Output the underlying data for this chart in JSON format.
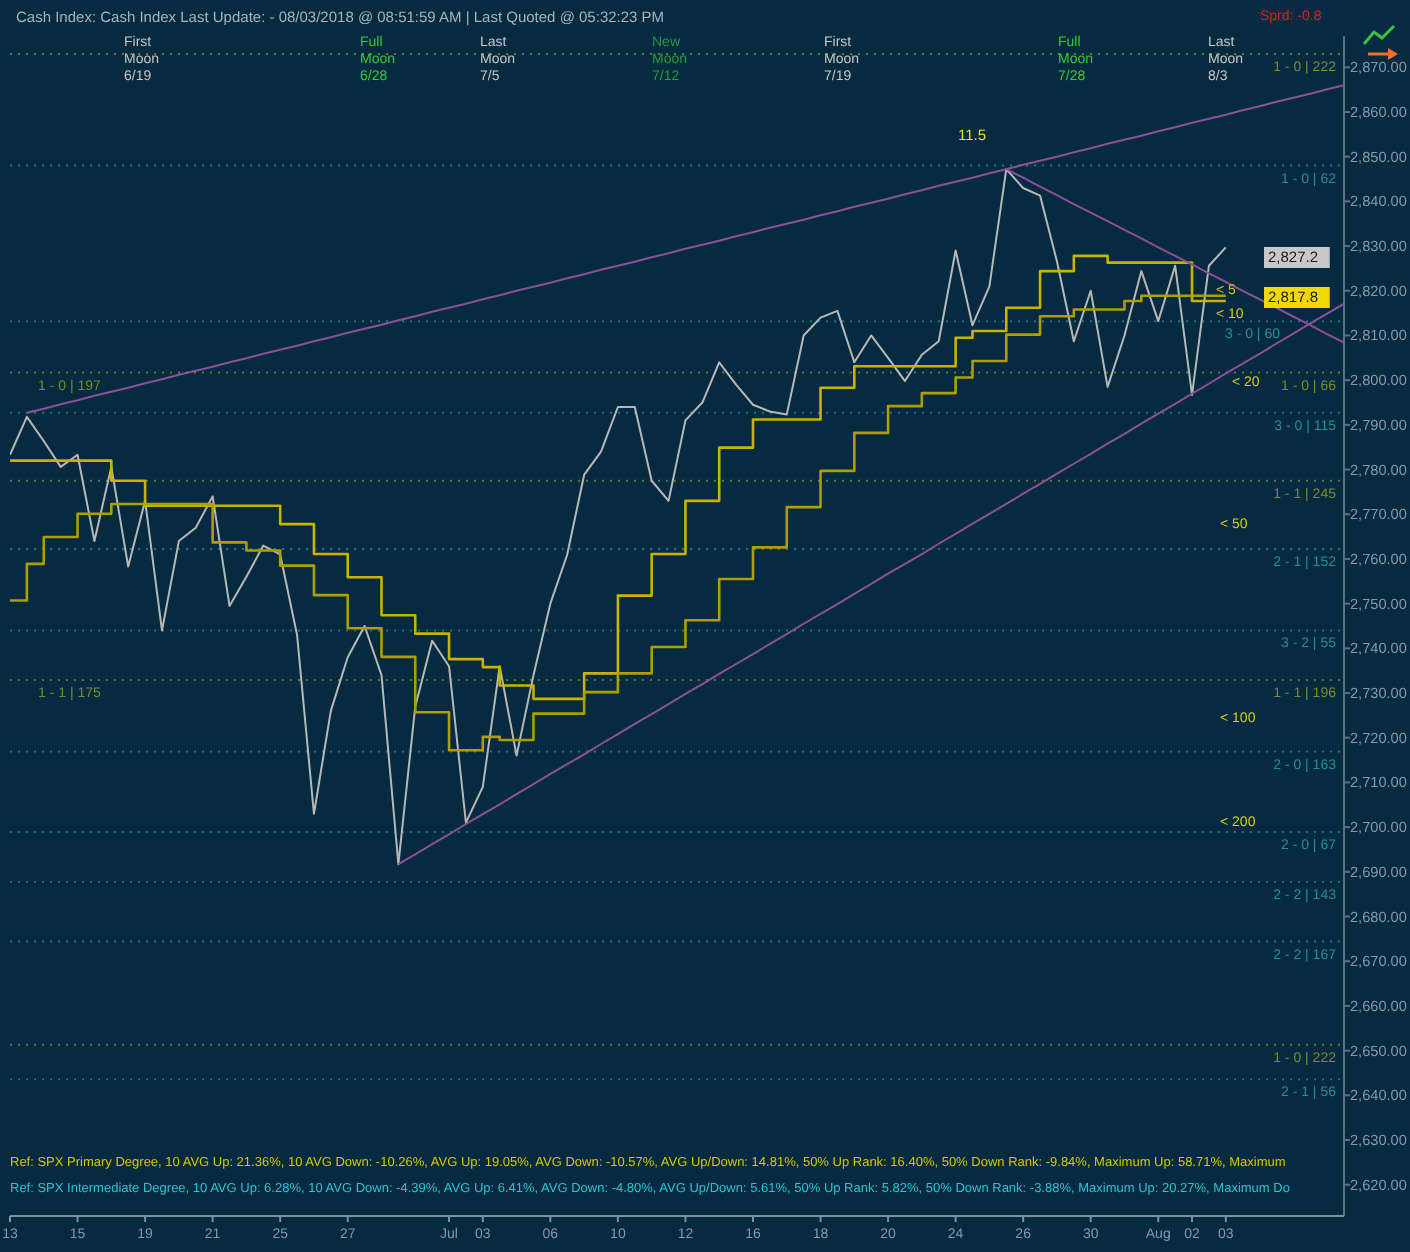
{
  "chart_data": {
    "type": "line",
    "title": "Cash Index:  Cash Index  Last Update:  - 08/03/2018 @ 08:51:59 AM | Last Quoted @ 05:32:23 PM",
    "categories": [
      "13",
      null,
      null,
      null,
      "15",
      null,
      null,
      null,
      "19",
      null,
      null,
      null,
      "21",
      null,
      null,
      null,
      "25",
      null,
      null,
      null,
      "27",
      null,
      null,
      null,
      null,
      null,
      "Jul",
      null,
      "03",
      null,
      null,
      null,
      "06",
      null,
      null,
      null,
      "10",
      null,
      null,
      null,
      "12",
      null,
      null,
      null,
      "16",
      null,
      null,
      null,
      "18",
      null,
      null,
      null,
      "20",
      null,
      null,
      null,
      "24",
      null,
      null,
      null,
      "26",
      null,
      null,
      null,
      "30",
      null,
      null,
      null,
      "Aug",
      null,
      "02",
      null,
      "03",
      null,
      null,
      null,
      null,
      null,
      null,
      null
    ],
    "ylim": [
      2613,
      2877
    ],
    "yticks": [
      {
        "value": 2620,
        "label": "2,620.00"
      },
      {
        "value": 2630,
        "label": "2,630.00"
      },
      {
        "value": 2640,
        "label": "2,640.00"
      },
      {
        "value": 2650,
        "label": "2,650.00"
      },
      {
        "value": 2660,
        "label": "2,660.00"
      },
      {
        "value": 2670,
        "label": "2,670.00"
      },
      {
        "value": 2680,
        "label": "2,680.00"
      },
      {
        "value": 2690,
        "label": "2,690.00"
      },
      {
        "value": 2700,
        "label": "2,700.00"
      },
      {
        "value": 2710,
        "label": "2,710.00"
      },
      {
        "value": 2720,
        "label": "2,720.00"
      },
      {
        "value": 2730,
        "label": "2,730.00"
      },
      {
        "value": 2740,
        "label": "2,740.00"
      },
      {
        "value": 2750,
        "label": "2,750.00"
      },
      {
        "value": 2760,
        "label": "2,760.00"
      },
      {
        "value": 2770,
        "label": "2,770.00"
      },
      {
        "value": 2780,
        "label": "2,780.00"
      },
      {
        "value": 2790,
        "label": "2,790.00"
      },
      {
        "value": 2800,
        "label": "2,800.00"
      },
      {
        "value": 2810,
        "label": "2,810.00"
      },
      {
        "value": 2820,
        "label": "2,820.00"
      },
      {
        "value": 2830,
        "label": "2,830.00"
      },
      {
        "value": 2840,
        "label": "2,840.00"
      },
      {
        "value": 2850,
        "label": "2,850.00"
      },
      {
        "value": 2860,
        "label": "2,860.00"
      },
      {
        "value": 2870,
        "label": "2,870.00"
      }
    ],
    "series": [
      {
        "type": "line",
        "color": "#b8b8b8",
        "values": [
          2783.3,
          2791.8,
          2786.4,
          2780.6,
          2783.3,
          2764,
          2780.6,
          2758.3,
          2773,
          2744,
          2764,
          2767,
          2774,
          2749.5,
          2756,
          2763,
          2761,
          2743,
          2703,
          2726,
          2738,
          2745,
          2734,
          2691.7,
          2727,
          2741.7,
          2736,
          2701,
          2709,
          2736,
          2716,
          2734,
          2750,
          2761,
          2778.8,
          2784,
          2794,
          2794,
          2777.5,
          2773,
          2791,
          2795,
          2804,
          2799,
          2794.5,
          2793,
          2792.3,
          2810,
          2814,
          2815.5,
          2804,
          2810,
          2805,
          2799.8,
          2805.7,
          2808.7,
          2829,
          2812.3,
          2821,
          2847.2,
          2843,
          2841.3,
          2826.6,
          2808.7,
          2820,
          2798.5,
          2810,
          2824.4,
          2813.2,
          2825.6,
          2796.7,
          2825.6,
          2829.7,
          null,
          null,
          null,
          null,
          null,
          null,
          null
        ]
      },
      {
        "type": "step",
        "color": "#c9b300",
        "values": [
          2782,
          2782,
          2782,
          2782,
          2782,
          2782,
          2777.5,
          2777.5,
          2771.9,
          2771.9,
          2771.9,
          2771.9,
          2771.9,
          2771.9,
          2771.9,
          2771.9,
          2767.8,
          2767.8,
          2761.1,
          2761.1,
          2755.9,
          2755.9,
          2747.4,
          2747.4,
          2743.3,
          2743.3,
          2737.6,
          2737.6,
          2735.8,
          2731.7,
          2731.7,
          2728.7,
          2728.7,
          2728.7,
          2734.4,
          2734.4,
          2751.8,
          2751.8,
          2761.1,
          2761.1,
          2773,
          2773,
          2784.9,
          2784.9,
          2791.2,
          2791.2,
          2791.2,
          2791.2,
          2798.3,
          2798.3,
          2803.1,
          2803.1,
          2803.1,
          2803.1,
          2803.1,
          2803.1,
          2809.5,
          2811,
          2811,
          2816.2,
          2816.2,
          2824.4,
          2824.4,
          2827.8,
          2827.8,
          2826.3,
          2826.3,
          2826.3,
          2826.3,
          2826.3,
          2817.7,
          2817.7,
          2817.7,
          null,
          null,
          null,
          null,
          null,
          null,
          null
        ]
      },
      {
        "type": "step",
        "color": "#b09e00",
        "values": [
          2750.7,
          2758.9,
          2764.9,
          2764.9,
          2770.1,
          2770.1,
          2772.3,
          2772.3,
          2772.3,
          2772.3,
          2772.3,
          2772.3,
          2763.7,
          2763.7,
          2761.9,
          2761.9,
          2758.5,
          2758.5,
          2751.9,
          2751.9,
          2744.5,
          2744.5,
          2738.1,
          2738.1,
          2725.7,
          2725.7,
          2717.2,
          2717.2,
          2720.2,
          2719.5,
          2719.5,
          2725.4,
          2725.4,
          2725.4,
          2730.2,
          2730.2,
          2734.4,
          2734.4,
          2740.3,
          2740.3,
          2746.3,
          2746.3,
          2755.5,
          2755.5,
          2762.6,
          2762.6,
          2771.6,
          2771.6,
          2779.7,
          2779.7,
          2788.2,
          2788.2,
          2794.2,
          2794.2,
          2797.1,
          2797.1,
          2800.6,
          2804.3,
          2804.3,
          2810.2,
          2810.2,
          2814.3,
          2814.3,
          2815.8,
          2815.8,
          2815.8,
          2817.7,
          2818.9,
          2818.9,
          2818.9,
          2818.9,
          2818.9,
          2818.9,
          null,
          null,
          null,
          null,
          null,
          null,
          null
        ]
      },
      {
        "type": "line",
        "color": "#8e4f9c",
        "values": [
          null,
          2792.7,
          2793.6,
          2794.6,
          2795.5,
          2796.5,
          2797.4,
          2798.3,
          2799.3,
          2800.2,
          2801.2,
          2802.1,
          2803.0,
          2804.0,
          2804.9,
          2805.9,
          2806.8,
          2807.7,
          2808.7,
          2809.6,
          2810.6,
          2811.5,
          2812.4,
          2813.4,
          2814.3,
          2815.3,
          2816.2,
          2817.1,
          2818.1,
          2819.0,
          2820.0,
          2820.9,
          2821.8,
          2822.8,
          2823.7,
          2824.7,
          2825.6,
          2826.5,
          2827.5,
          2828.4,
          2829.4,
          2830.3,
          2831.2,
          2832.2,
          2833.1,
          2834.1,
          2835.0,
          2835.9,
          2836.9,
          2837.8,
          2838.8,
          2839.7,
          2840.6,
          2841.6,
          2842.5,
          2843.5,
          2844.4,
          2845.3,
          2846.3,
          2847.2,
          2848.2,
          2849.1,
          2850.0,
          2851.0,
          2851.9,
          2852.9,
          2853.8,
          2854.7,
          2855.7,
          2856.6,
          2857.6,
          2858.5,
          2859.4,
          2860.4,
          2861.3,
          2862.3,
          2863.2,
          2864.1,
          2865.1,
          2866.0
        ]
      },
      {
        "type": "line",
        "color": "#8e4f9c",
        "values": [
          null,
          null,
          null,
          null,
          null,
          null,
          null,
          null,
          null,
          null,
          null,
          null,
          null,
          null,
          null,
          null,
          null,
          null,
          null,
          null,
          null,
          null,
          null,
          null,
          null,
          null,
          null,
          null,
          null,
          null,
          null,
          null,
          null,
          null,
          null,
          null,
          null,
          null,
          null,
          null,
          null,
          null,
          null,
          null,
          null,
          null,
          null,
          null,
          null,
          null,
          null,
          null,
          null,
          null,
          null,
          null,
          null,
          null,
          null,
          2847.2,
          2845.3,
          2843.3,
          2841.4,
          2839.4,
          2837.5,
          2835.6,
          2833.6,
          2831.7,
          2829.7,
          2827.8,
          2825.9,
          2823.9,
          2822.0,
          2820.0,
          2818.1,
          2816.2,
          2814.2,
          2812.3,
          2810.3,
          2808.4
        ]
      },
      {
        "type": "line",
        "color": "#8e4f9c",
        "values": [
          null,
          null,
          null,
          null,
          null,
          null,
          null,
          null,
          null,
          null,
          null,
          null,
          null,
          null,
          null,
          null,
          null,
          null,
          null,
          null,
          null,
          null,
          null,
          2691.7,
          2693.9,
          2696.2,
          2698.4,
          2700.7,
          2702.9,
          2705.1,
          2707.4,
          2709.6,
          2711.9,
          2714.1,
          2716.3,
          2718.6,
          2720.8,
          2723.1,
          2725.3,
          2727.5,
          2729.8,
          2732.0,
          2734.3,
          2736.5,
          2738.7,
          2741.0,
          2743.2,
          2745.5,
          2747.7,
          2749.9,
          2752.2,
          2754.4,
          2756.7,
          2758.9,
          2761.1,
          2763.4,
          2765.6,
          2767.9,
          2770.1,
          2772.3,
          2774.6,
          2776.8,
          2779.1,
          2781.3,
          2783.5,
          2785.8,
          2788.0,
          2790.3,
          2792.5,
          2794.7,
          2797.0,
          2799.2,
          2801.5,
          2803.7,
          2805.9,
          2808.2,
          2810.4,
          2812.7,
          2814.9,
          2817.1
        ]
      }
    ],
    "ref_lines": [
      {
        "axis": "y",
        "value": 2873,
        "color": "#6b7a1e",
        "line_style": "dotted"
      },
      {
        "axis": "y",
        "value": 2848,
        "color": "#1f7a80",
        "line_style": "dotted"
      },
      {
        "axis": "y",
        "value": 2813.2,
        "color": "#1f7a80",
        "line_style": "dotted"
      },
      {
        "axis": "y",
        "value": 2801.7,
        "color": "#6b7a1e",
        "line_style": "dotted"
      },
      {
        "axis": "y",
        "value": 2792.7,
        "color": "#1f7a80",
        "line_style": "dotted"
      },
      {
        "axis": "y",
        "value": 2777.5,
        "color": "#6b7a1e",
        "line_style": "dotted"
      },
      {
        "axis": "y",
        "value": 2762.2,
        "color": "#1f7a80",
        "line_style": "dotted"
      },
      {
        "axis": "y",
        "value": 2744,
        "color": "#1f7a80",
        "line_style": "dotted"
      },
      {
        "axis": "y",
        "value": 2732.9,
        "color": "#6b7a1e",
        "line_style": "dotted"
      },
      {
        "axis": "y",
        "value": 2716.9,
        "color": "#1f7a80",
        "line_style": "dotted"
      },
      {
        "axis": "y",
        "value": 2698.9,
        "color": "#1f7a80",
        "line_style": "dotted"
      },
      {
        "axis": "y",
        "value": 2687.8,
        "color": "#1f7a80",
        "line_style": "dotted"
      },
      {
        "axis": "y",
        "value": 2674.4,
        "color": "#1f7a80",
        "line_style": "dotted"
      },
      {
        "axis": "y",
        "value": 2651.3,
        "color": "#6b7a1e",
        "line_style": "dotted"
      },
      {
        "axis": "y",
        "value": 2643.6,
        "color": "#1f7a80",
        "line_style": "dotted"
      }
    ],
    "annotations": [
      "Ref: SPX Primary Degree, 10 AVG Up: 21.36%, 10 AVG Down: -10.26%, AVG Up: 19.05%, AVG Down: -10.57%, AVG Up/Down: 14.81%, 50%  Up Rank: 16.40%, 50% Down Rank: -9.84%, Maximum Up: 58.71%, Maximum",
      "Ref: SPX Intermediate Degree, 10 AVG Up: 6.28%, 10 AVG Down: -4.39%, AVG Up: 6.41%, AVG Down: -4.80%, AVG Up/Down: 5.61%, 50%  Up Rank: 5.82%, 50% Down Rank: -3.88%, Maximum Up: 20.27%, Maximum Do",
      "Sprd: -0.8",
      "First\nMoon\n6/19",
      "Full\nMoon\n6/28",
      "Last\nMoon\n7/5",
      "New\nMoon\n7/12",
      "First\nMoon\n7/19",
      "Full\nMoon\n7/28",
      "Last\nMoon\n8/3",
      "11.5",
      "< 5",
      "< 10",
      "< 20",
      "< 50",
      "< 100",
      "< 200",
      "2,827.2",
      "2,817.8",
      {
        "text": "1 - 0 | 222",
        "y": 2873
      },
      {
        "text": "1 - 0 | 62",
        "y": 2848
      },
      {
        "text": "3 - 0 | 60",
        "y": 2813.2
      },
      {
        "text": "1 - 0 | 66",
        "y": 2801.7
      },
      {
        "text": "1 - 0 | 197",
        "y": 2801.7
      },
      {
        "text": "3 - 0 | 115",
        "y": 2792.7
      },
      {
        "text": "1 - 1 | 245",
        "y": 2777.5
      },
      {
        "text": "2 - 1 | 152",
        "y": 2762.2
      },
      {
        "text": "3 - 2 | 55",
        "y": 2744
      },
      {
        "text": "1 - 1 | 196",
        "y": 2732.9
      },
      {
        "text": "1 - 1 | 175",
        "y": 2732.9
      },
      {
        "text": "2 - 0 | 163",
        "y": 2716.9
      },
      {
        "text": "2 - 0 | 67",
        "y": 2698.9
      },
      {
        "text": "2 - 2 | 143",
        "y": 2687.8
      },
      {
        "text": "2 - 2 | 167",
        "y": 2674.4
      },
      {
        "text": "1 - 0 | 222",
        "y": 2651.3
      },
      {
        "text": "2 - 1 | 56",
        "y": 2643.6
      }
    ]
  }
}
